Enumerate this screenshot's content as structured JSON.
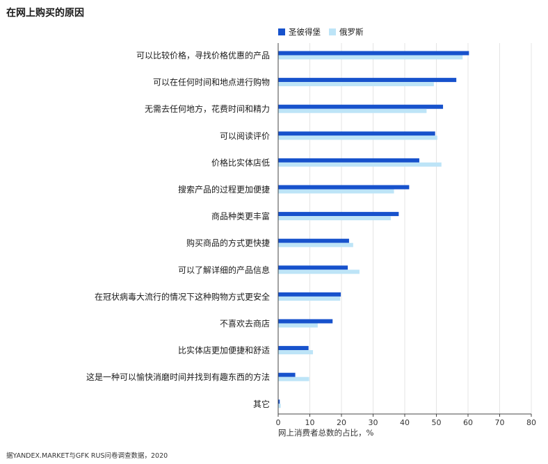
{
  "chart_data": {
    "type": "bar",
    "orientation": "horizontal",
    "title": "在网上购买的原因",
    "xlabel": "网上消费者总数的占比，%",
    "xlim": [
      0,
      80
    ],
    "xticks": [
      0,
      10,
      20,
      30,
      40,
      50,
      60,
      70,
      80
    ],
    "grid": true,
    "legend_position": "top",
    "categories": [
      "可以比较价格，寻找价格优惠的产品",
      "可以在任何时间和地点进行购物",
      "无需去任何地方，花费时间和精力",
      "可以阅读评价",
      "价格比实体店低",
      "搜索产品的过程更加便捷",
      "商品种类更丰富",
      "购买商品的方式更快捷",
      "可以了解详细的产品信息",
      "在冠状病毒大流行的情况下这种购物方式更安全",
      "不喜欢去商店",
      "比实体店更加便捷和舒适",
      "这是一种可以愉快消磨时间并找到有趣东西的方法",
      "其它"
    ],
    "series": [
      {
        "name": "圣彼得堡",
        "color": "#1752cc",
        "values": [
          60.3,
          56.3,
          52.1,
          49.6,
          44.6,
          41.4,
          38.1,
          22.4,
          22.0,
          19.8,
          17.2,
          9.6,
          5.4,
          0.5
        ]
      },
      {
        "name": "俄罗斯",
        "color": "#bde4f7",
        "values": [
          58.3,
          49.2,
          46.9,
          50.3,
          51.6,
          36.6,
          35.6,
          23.7,
          25.7,
          19.6,
          12.5,
          11.0,
          9.8,
          0.8
        ]
      }
    ]
  },
  "source": "据YANDEX.MARKET与GFK RUS问卷调查数据，2020"
}
